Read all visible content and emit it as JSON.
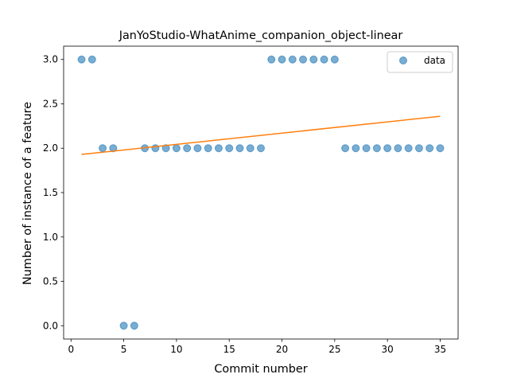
{
  "chart_data": {
    "type": "scatter",
    "title": "JanYoStudio-WhatAnime_companion_object-linear",
    "xlabel": "Commit number",
    "ylabel": "Number of instance of a feature",
    "xlim": [
      -0.7,
      36.7
    ],
    "ylim": [
      -0.15,
      3.15
    ],
    "xticks": [
      0,
      5,
      10,
      15,
      20,
      25,
      30,
      35
    ],
    "yticks": [
      0.0,
      0.5,
      1.0,
      1.5,
      2.0,
      2.5,
      3.0
    ],
    "xtick_labels": [
      "0",
      "5",
      "10",
      "15",
      "20",
      "25",
      "30",
      "35"
    ],
    "ytick_labels": [
      "0.0",
      "0.5",
      "1.0",
      "1.5",
      "2.0",
      "2.5",
      "3.0"
    ],
    "grid": false,
    "legend_position": "top-right",
    "series": [
      {
        "name": "data",
        "kind": "scatter",
        "color": "#1f77b4",
        "x": [
          1,
          2,
          3,
          4,
          5,
          6,
          7,
          8,
          9,
          10,
          11,
          12,
          13,
          14,
          15,
          16,
          17,
          18,
          19,
          20,
          21,
          22,
          23,
          24,
          25,
          26,
          27,
          28,
          29,
          30,
          31,
          32,
          33,
          34,
          35
        ],
        "y": [
          3,
          3,
          2,
          2,
          0,
          0,
          2,
          2,
          2,
          2,
          2,
          2,
          2,
          2,
          2,
          2,
          2,
          2,
          3,
          3,
          3,
          3,
          3,
          3,
          3,
          2,
          2,
          2,
          2,
          2,
          2,
          2,
          2,
          2,
          2
        ]
      },
      {
        "kind": "line",
        "color": "#ff7f0e",
        "x": [
          1,
          35
        ],
        "y": [
          1.93,
          2.36
        ]
      }
    ]
  }
}
